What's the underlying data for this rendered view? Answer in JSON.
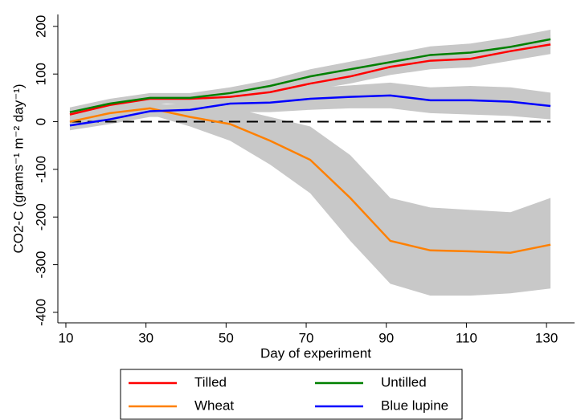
{
  "chart_data": {
    "type": "line",
    "xlabel": "Day of experiment",
    "ylabel": "CO2-C (grams⁻¹ m⁻² day⁻¹)",
    "x": [
      11,
      21,
      31,
      41,
      51,
      61,
      71,
      81,
      91,
      101,
      111,
      121,
      131
    ],
    "series": [
      {
        "name": "Tilled",
        "color": "#ff0000",
        "values": [
          15,
          35,
          48,
          48,
          52,
          62,
          80,
          95,
          115,
          128,
          132,
          148,
          162
        ],
        "lower": [
          5,
          25,
          38,
          38,
          40,
          50,
          66,
          80,
          98,
          110,
          114,
          128,
          142
        ],
        "upper": [
          25,
          45,
          58,
          58,
          64,
          74,
          94,
          110,
          132,
          146,
          150,
          168,
          182
        ]
      },
      {
        "name": "Untilled",
        "color": "#008000",
        "values": [
          20,
          38,
          50,
          50,
          60,
          75,
          95,
          110,
          125,
          140,
          145,
          157,
          173
        ],
        "lower": [
          10,
          28,
          40,
          40,
          48,
          62,
          80,
          94,
          108,
          122,
          126,
          137,
          153
        ],
        "upper": [
          30,
          48,
          60,
          60,
          72,
          88,
          110,
          126,
          142,
          158,
          164,
          177,
          193
        ]
      },
      {
        "name": "Wheat",
        "color": "#ff8000",
        "values": [
          0,
          18,
          28,
          10,
          -5,
          -40,
          -80,
          -160,
          -250,
          -270,
          -272,
          -275,
          -258
        ],
        "lower": [
          -15,
          5,
          15,
          -10,
          -40,
          -90,
          -150,
          -250,
          -340,
          -365,
          -365,
          -360,
          -350
        ],
        "upper": [
          15,
          31,
          41,
          30,
          30,
          10,
          -10,
          -70,
          -160,
          -180,
          -185,
          -190,
          -160
        ]
      },
      {
        "name": "Blue lupine",
        "color": "#0000ff",
        "values": [
          -8,
          5,
          22,
          25,
          38,
          40,
          48,
          52,
          55,
          45,
          45,
          42,
          33
        ],
        "lower": [
          -18,
          -5,
          10,
          10,
          20,
          20,
          25,
          28,
          28,
          18,
          15,
          12,
          5
        ],
        "upper": [
          2,
          15,
          34,
          40,
          56,
          60,
          71,
          76,
          82,
          72,
          75,
          72,
          61
        ]
      }
    ],
    "band_color": "#c8c8c8",
    "hline": 0,
    "xlim": [
      8,
      137
    ],
    "xticks": [
      10,
      30,
      50,
      70,
      90,
      110,
      130
    ],
    "ylim": [
      -422,
      225
    ],
    "yticks": [
      -400,
      -300,
      -200,
      -100,
      0,
      100,
      200
    ],
    "legend": "bottom"
  }
}
